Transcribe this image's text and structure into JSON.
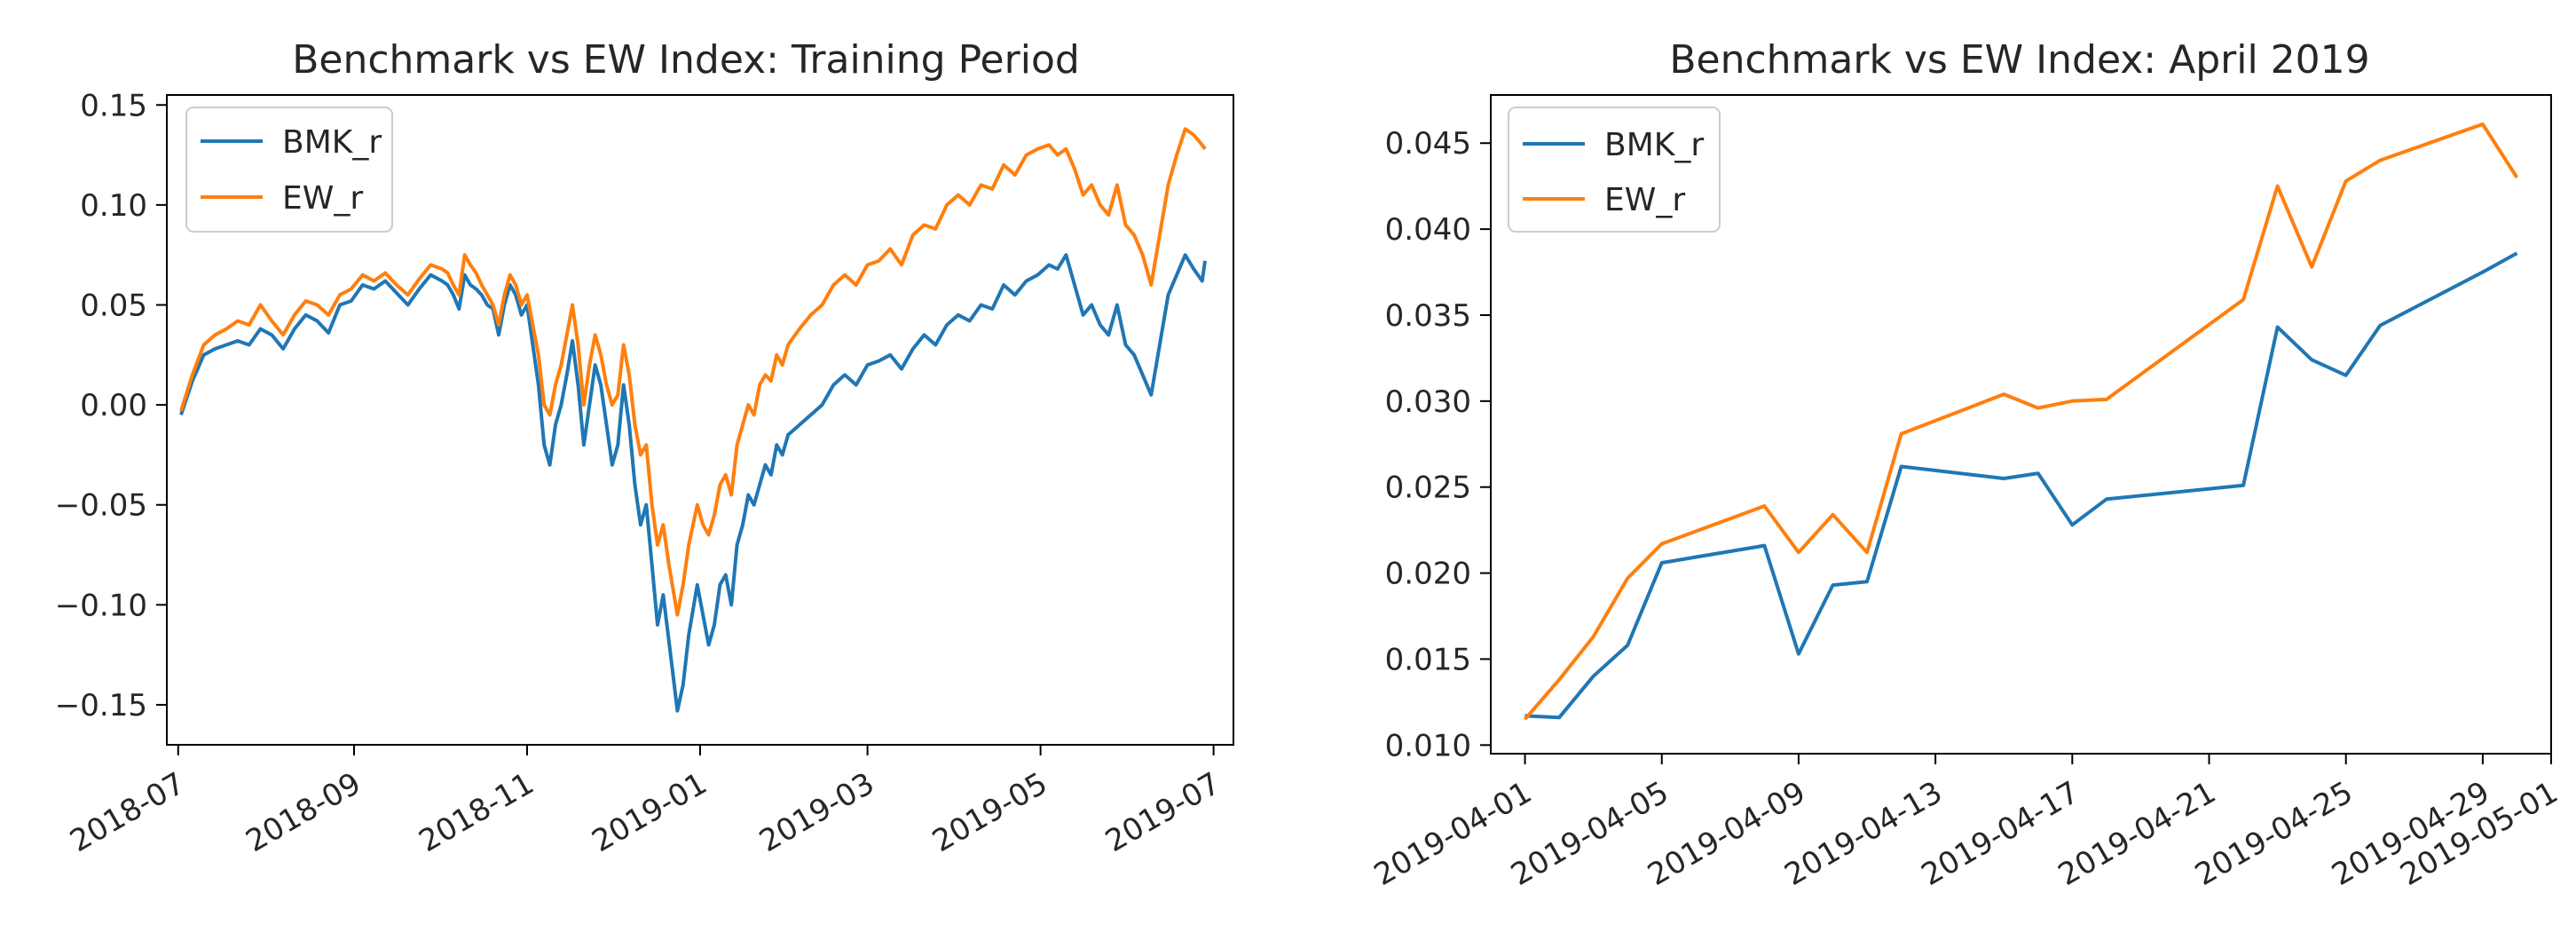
{
  "chart_data": [
    {
      "type": "line",
      "title": "Benchmark vs EW Index: Training Period",
      "xlabel": "",
      "ylabel": "",
      "x_ticks": [
        "2018-07",
        "2018-09",
        "2018-11",
        "2019-01",
        "2019-03",
        "2019-05",
        "2019-07"
      ],
      "y_ticks": [
        "0.15",
        "0.10",
        "0.05",
        "0.00",
        "−0.05",
        "−0.10",
        "−0.15"
      ],
      "ylim": [
        -0.17,
        0.155
      ],
      "xlim": [
        "2018-06-27",
        "2019-07-08"
      ],
      "legend_position": "top-left",
      "grid": false,
      "colors": {
        "BMK_r": "#1f77b4",
        "EW_r": "#ff7f0e"
      },
      "x": [
        "2018-07-02",
        "2018-07-06",
        "2018-07-10",
        "2018-07-14",
        "2018-07-18",
        "2018-07-22",
        "2018-07-26",
        "2018-07-30",
        "2018-08-03",
        "2018-08-07",
        "2018-08-11",
        "2018-08-15",
        "2018-08-19",
        "2018-08-23",
        "2018-08-27",
        "2018-08-31",
        "2018-09-04",
        "2018-09-08",
        "2018-09-12",
        "2018-09-16",
        "2018-09-20",
        "2018-09-24",
        "2018-09-28",
        "2018-10-02",
        "2018-10-04",
        "2018-10-06",
        "2018-10-08",
        "2018-10-10",
        "2018-10-12",
        "2018-10-14",
        "2018-10-16",
        "2018-10-18",
        "2018-10-20",
        "2018-10-22",
        "2018-10-24",
        "2018-10-26",
        "2018-10-28",
        "2018-10-30",
        "2018-11-01",
        "2018-11-03",
        "2018-11-05",
        "2018-11-07",
        "2018-11-09",
        "2018-11-11",
        "2018-11-13",
        "2018-11-15",
        "2018-11-17",
        "2018-11-19",
        "2018-11-21",
        "2018-11-23",
        "2018-11-25",
        "2018-11-27",
        "2018-11-29",
        "2018-12-01",
        "2018-12-03",
        "2018-12-05",
        "2018-12-07",
        "2018-12-09",
        "2018-12-11",
        "2018-12-13",
        "2018-12-15",
        "2018-12-17",
        "2018-12-19",
        "2018-12-21",
        "2018-12-24",
        "2018-12-26",
        "2018-12-28",
        "2018-12-31",
        "2019-01-02",
        "2019-01-04",
        "2019-01-06",
        "2019-01-08",
        "2019-01-10",
        "2019-01-12",
        "2019-01-14",
        "2019-01-16",
        "2019-01-18",
        "2019-01-20",
        "2019-01-22",
        "2019-01-24",
        "2019-01-26",
        "2019-01-28",
        "2019-01-30",
        "2019-02-01",
        "2019-02-05",
        "2019-02-09",
        "2019-02-13",
        "2019-02-17",
        "2019-02-21",
        "2019-02-25",
        "2019-03-01",
        "2019-03-05",
        "2019-03-09",
        "2019-03-13",
        "2019-03-17",
        "2019-03-21",
        "2019-03-25",
        "2019-03-29",
        "2019-04-02",
        "2019-04-06",
        "2019-04-10",
        "2019-04-14",
        "2019-04-18",
        "2019-04-22",
        "2019-04-26",
        "2019-04-30",
        "2019-05-04",
        "2019-05-07",
        "2019-05-10",
        "2019-05-13",
        "2019-05-16",
        "2019-05-19",
        "2019-05-22",
        "2019-05-25",
        "2019-05-28",
        "2019-05-31",
        "2019-06-03",
        "2019-06-06",
        "2019-06-09",
        "2019-06-12",
        "2019-06-15",
        "2019-06-18",
        "2019-06-21",
        "2019-06-24",
        "2019-06-27",
        "2019-06-28"
      ],
      "series": [
        {
          "name": "BMK_r",
          "values": [
            -0.005,
            0.012,
            0.025,
            0.028,
            0.03,
            0.032,
            0.03,
            0.038,
            0.035,
            0.028,
            0.038,
            0.045,
            0.042,
            0.036,
            0.05,
            0.052,
            0.06,
            0.058,
            0.062,
            0.056,
            0.05,
            0.058,
            0.065,
            0.062,
            0.06,
            0.055,
            0.048,
            0.065,
            0.06,
            0.058,
            0.055,
            0.05,
            0.048,
            0.035,
            0.05,
            0.06,
            0.055,
            0.045,
            0.05,
            0.03,
            0.01,
            -0.02,
            -0.03,
            -0.01,
            0.0,
            0.015,
            0.032,
            0.01,
            -0.02,
            0.0,
            0.02,
            0.01,
            -0.01,
            -0.03,
            -0.02,
            0.01,
            -0.01,
            -0.04,
            -0.06,
            -0.05,
            -0.08,
            -0.11,
            -0.095,
            -0.118,
            -0.153,
            -0.14,
            -0.115,
            -0.09,
            -0.105,
            -0.12,
            -0.11,
            -0.09,
            -0.085,
            -0.1,
            -0.07,
            -0.06,
            -0.045,
            -0.05,
            -0.04,
            -0.03,
            -0.035,
            -0.02,
            -0.025,
            -0.015,
            -0.01,
            -0.005,
            0.0,
            0.01,
            0.015,
            0.01,
            0.02,
            0.022,
            0.025,
            0.018,
            0.028,
            0.035,
            0.03,
            0.04,
            0.045,
            0.042,
            0.05,
            0.048,
            0.06,
            0.055,
            0.062,
            0.065,
            0.07,
            0.068,
            0.075,
            0.06,
            0.045,
            0.05,
            0.04,
            0.035,
            0.05,
            0.03,
            0.025,
            0.015,
            0.005,
            0.03,
            0.055,
            0.065,
            0.075,
            0.068,
            0.062,
            0.072
          ]
        },
        {
          "name": "EW_r",
          "values": [
            -0.003,
            0.015,
            0.03,
            0.035,
            0.038,
            0.042,
            0.04,
            0.05,
            0.042,
            0.035,
            0.045,
            0.052,
            0.05,
            0.045,
            0.055,
            0.058,
            0.065,
            0.062,
            0.066,
            0.06,
            0.055,
            0.063,
            0.07,
            0.068,
            0.066,
            0.06,
            0.055,
            0.075,
            0.07,
            0.066,
            0.06,
            0.055,
            0.05,
            0.04,
            0.055,
            0.065,
            0.06,
            0.05,
            0.055,
            0.04,
            0.025,
            0.0,
            -0.005,
            0.01,
            0.02,
            0.035,
            0.05,
            0.03,
            0.0,
            0.02,
            0.035,
            0.025,
            0.01,
            0.0,
            0.005,
            0.03,
            0.015,
            -0.01,
            -0.025,
            -0.02,
            -0.05,
            -0.07,
            -0.06,
            -0.08,
            -0.105,
            -0.09,
            -0.07,
            -0.05,
            -0.06,
            -0.065,
            -0.055,
            -0.04,
            -0.035,
            -0.045,
            -0.02,
            -0.01,
            0.0,
            -0.005,
            0.01,
            0.015,
            0.012,
            0.025,
            0.02,
            0.03,
            0.038,
            0.045,
            0.05,
            0.06,
            0.065,
            0.06,
            0.07,
            0.072,
            0.078,
            0.07,
            0.085,
            0.09,
            0.088,
            0.1,
            0.105,
            0.1,
            0.11,
            0.108,
            0.12,
            0.115,
            0.125,
            0.128,
            0.13,
            0.125,
            0.128,
            0.118,
            0.105,
            0.11,
            0.1,
            0.095,
            0.11,
            0.09,
            0.085,
            0.075,
            0.06,
            0.085,
            0.11,
            0.125,
            0.138,
            0.135,
            0.13,
            0.128
          ]
        }
      ]
    },
    {
      "type": "line",
      "title": "Benchmark vs EW Index: April 2019",
      "xlabel": "",
      "ylabel": "",
      "x_ticks": [
        "2019-04-01",
        "2019-04-05",
        "2019-04-09",
        "2019-04-13",
        "2019-04-17",
        "2019-04-21",
        "2019-04-25",
        "2019-04-29",
        "2019-05-01"
      ],
      "y_ticks": [
        "0.045",
        "0.040",
        "0.035",
        "0.030",
        "0.025",
        "0.020",
        "0.015",
        "0.010"
      ],
      "ylim": [
        0.0095,
        0.0478
      ],
      "xlim": [
        "2019-03-31",
        "2019-05-01"
      ],
      "legend_position": "top-left",
      "grid": false,
      "colors": {
        "BMK_r": "#1f77b4",
        "EW_r": "#ff7f0e"
      },
      "x": [
        "2019-04-01",
        "2019-04-02",
        "2019-04-03",
        "2019-04-04",
        "2019-04-05",
        "2019-04-08",
        "2019-04-09",
        "2019-04-10",
        "2019-04-11",
        "2019-04-12",
        "2019-04-15",
        "2019-04-16",
        "2019-04-17",
        "2019-04-18",
        "2019-04-22",
        "2019-04-23",
        "2019-04-24",
        "2019-04-25",
        "2019-04-26",
        "2019-04-29",
        "2019-04-30"
      ],
      "series": [
        {
          "name": "BMK_r",
          "values": [
            0.0117,
            0.0116,
            0.014,
            0.0158,
            0.0206,
            0.0216,
            0.0153,
            0.0193,
            0.0195,
            0.0262,
            0.0255,
            0.0258,
            0.0228,
            0.0243,
            0.0251,
            0.0343,
            0.0324,
            0.0315,
            0.0344,
            0.0375,
            0.0386
          ]
        },
        {
          "name": "EW_r",
          "values": [
            0.0115,
            0.0138,
            0.0163,
            0.0197,
            0.0217,
            0.0239,
            0.0212,
            0.0234,
            0.0212,
            0.0281,
            0.0304,
            0.0296,
            0.03,
            0.0301,
            0.0359,
            0.0425,
            0.0378,
            0.0428,
            0.044,
            0.0461,
            0.043
          ]
        }
      ]
    }
  ]
}
